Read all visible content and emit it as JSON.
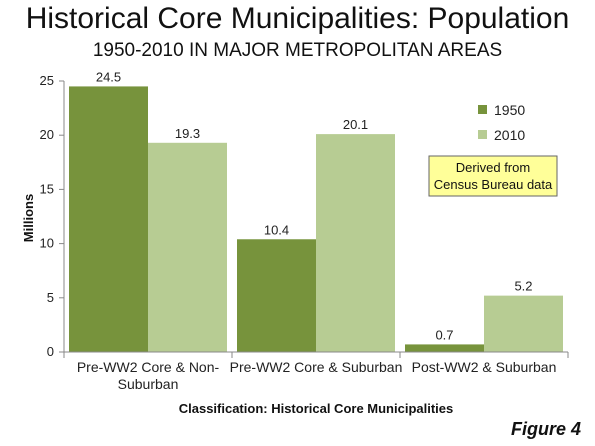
{
  "header": {
    "title": "Historical Core Municipalities: Population",
    "subtitle": "1950-2010 IN MAJOR METROPOLITAN AREAS"
  },
  "figure_label": "Figure 4",
  "note": {
    "lines": [
      "Derived from",
      "Census Bureau data"
    ],
    "fill_color": "#ffff99"
  },
  "chart_data": {
    "type": "bar",
    "title": "Historical Core Municipalities: Population",
    "subtitle": "1950-2010 IN MAJOR METROPOLITAN AREAS",
    "categories": [
      [
        "Pre-WW2 Core & Non-",
        "Suburban"
      ],
      [
        "Pre-WW2 Core & Suburban"
      ],
      [
        "Post-WW2 & Suburban"
      ]
    ],
    "series": [
      {
        "name": "1950",
        "color": "#77933c",
        "values": [
          24.5,
          10.4,
          0.7
        ],
        "labels": [
          "24.5",
          "10.4",
          "0.7"
        ]
      },
      {
        "name": "2010",
        "color": "#b7cc93",
        "values": [
          19.3,
          20.1,
          5.2
        ],
        "labels": [
          "19.3",
          "20.1",
          "5.2"
        ]
      }
    ],
    "xlabel": "Classification: Historical Core Municipalities",
    "ylabel": "Millions",
    "ylim": [
      0,
      25
    ],
    "yticks": [
      0,
      5,
      10,
      15,
      20,
      25
    ],
    "grid": false,
    "legend_position": "top-right"
  }
}
